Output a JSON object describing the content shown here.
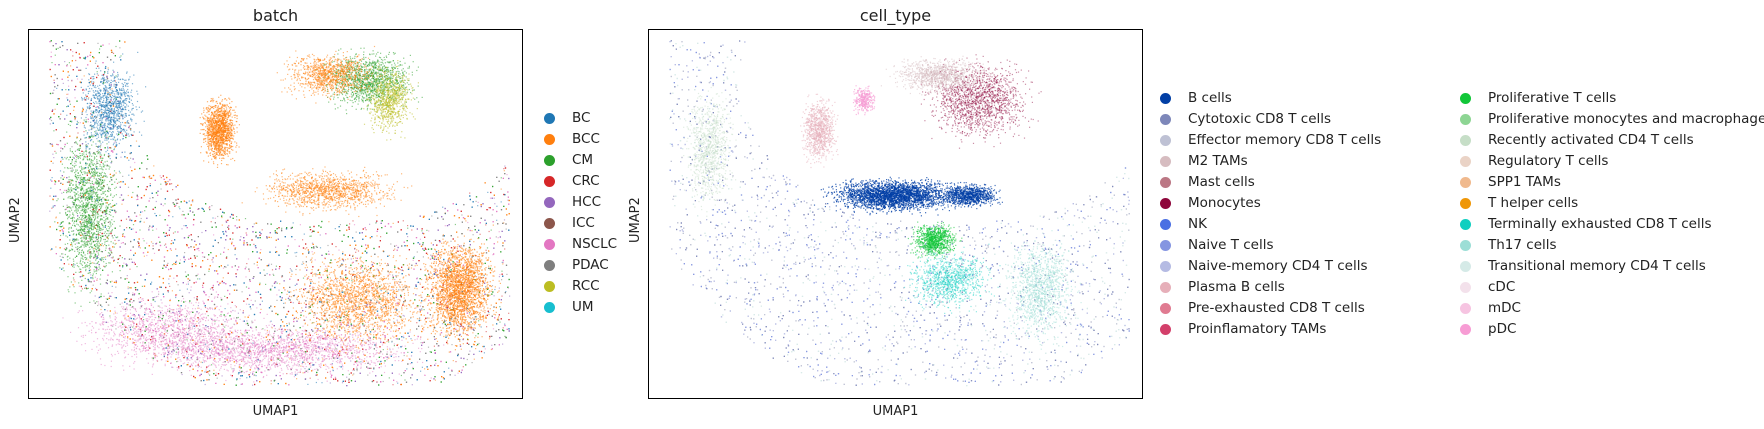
{
  "chart_data": [
    {
      "type": "scatter",
      "title": "batch",
      "xlabel": "UMAP1",
      "ylabel": "UMAP2",
      "grid": false,
      "legend_placement": "right",
      "legend_columns": 1,
      "categories": [
        {
          "label": "BC",
          "color": "#1f77b4"
        },
        {
          "label": "BCC",
          "color": "#ff7f0e"
        },
        {
          "label": "CM",
          "color": "#2ca02c"
        },
        {
          "label": "CRC",
          "color": "#d62728"
        },
        {
          "label": "HCC",
          "color": "#9467bd"
        },
        {
          "label": "ICC",
          "color": "#8c564b"
        },
        {
          "label": "NSCLC",
          "color": "#e377c2"
        },
        {
          "label": "PDAC",
          "color": "#7f7f7f"
        },
        {
          "label": "RCC",
          "color": "#bcbd22"
        },
        {
          "label": "UM",
          "color": "#17becf"
        }
      ]
    },
    {
      "type": "scatter",
      "title": "cell_type",
      "xlabel": "UMAP1",
      "ylabel": "UMAP2",
      "grid": false,
      "legend_placement": "right",
      "legend_columns": 2,
      "categories": [
        {
          "label": "B cells",
          "color": "#023fa5"
        },
        {
          "label": "Cytotoxic CD8 T cells",
          "color": "#7d87b9"
        },
        {
          "label": "Effector memory CD8 T cells",
          "color": "#bec1d4"
        },
        {
          "label": "M2 TAMs",
          "color": "#d6bcc0"
        },
        {
          "label": "Mast cells",
          "color": "#bb7784"
        },
        {
          "label": "Monocytes",
          "color": "#8e063b"
        },
        {
          "label": "NK",
          "color": "#4a6fe3"
        },
        {
          "label": "Naive T cells",
          "color": "#8595e1"
        },
        {
          "label": "Naive-memory CD4 T cells",
          "color": "#b5bbe3"
        },
        {
          "label": "Plasma B cells",
          "color": "#e6afb9"
        },
        {
          "label": "Pre-exhausted CD8 T cells",
          "color": "#e07b91"
        },
        {
          "label": "Proinflamatory TAMs",
          "color": "#d33f6a"
        },
        {
          "label": "Proliferative T cells",
          "color": "#11c638"
        },
        {
          "label": "Proliferative monocytes and macrophages",
          "color": "#8dd593"
        },
        {
          "label": "Recently activated CD4 T cells",
          "color": "#c6dec7"
        },
        {
          "label": "Regulatory T cells",
          "color": "#ead3c6"
        },
        {
          "label": "SPP1 TAMs",
          "color": "#f0b98d"
        },
        {
          "label": "T helper cells",
          "color": "#ef9708"
        },
        {
          "label": "Terminally exhausted CD8 T cells",
          "color": "#0fcfc0"
        },
        {
          "label": "Th17 cells",
          "color": "#9cded6"
        },
        {
          "label": "Transitional memory CD4 T cells",
          "color": "#d5eae7"
        },
        {
          "label": "cDC",
          "color": "#f3e1eb"
        },
        {
          "label": "mDC",
          "color": "#f6c4e1"
        },
        {
          "label": "pDC",
          "color": "#f79cd4"
        }
      ]
    }
  ]
}
